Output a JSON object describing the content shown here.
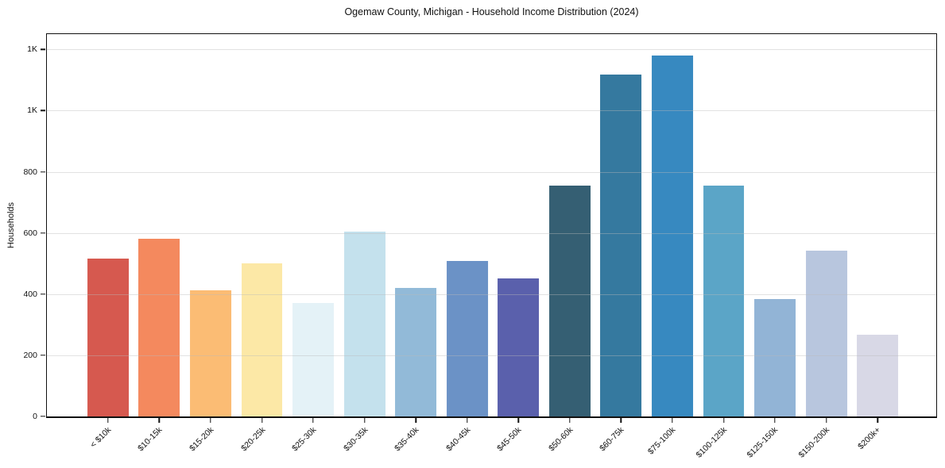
{
  "chart_data": {
    "type": "bar",
    "title": "Ogemaw County, Michigan - Household Income Distribution (2024)",
    "xlabel": "",
    "ylabel": "Households",
    "ylim": [
      0,
      1250
    ],
    "grid": true,
    "legend": false,
    "categories": [
      "< $10k",
      "$10-15k",
      "$15-20k",
      "$20-25k",
      "$25-30k",
      "$30-35k",
      "$35-40k",
      "$40-45k",
      "$45-50k",
      "$50-60k",
      "$60-75k",
      "$75-100k",
      "$100-125k",
      "$125-150k",
      "$150-200k",
      "$200k+"
    ],
    "values": [
      515,
      580,
      413,
      500,
      372,
      605,
      421,
      508,
      450,
      756,
      1118,
      1181,
      754,
      384,
      541,
      268
    ],
    "bar_colors": [
      "#d6594f",
      "#f4895e",
      "#fbbc74",
      "#fce8a6",
      "#e4f2f7",
      "#c4e1ed",
      "#92bad8",
      "#6b92c6",
      "#5a60ac",
      "#355f73",
      "#35799f",
      "#3789c0",
      "#5ba5c7",
      "#92b4d6",
      "#b8c6de",
      "#d8d8e6"
    ],
    "yticks": [
      {
        "value": 0,
        "label": "0"
      },
      {
        "value": 200,
        "label": "200"
      },
      {
        "value": 400,
        "label": "400"
      },
      {
        "value": 600,
        "label": "600"
      },
      {
        "value": 800,
        "label": "800"
      },
      {
        "value": 1000,
        "label": "1K"
      },
      {
        "value": 1200,
        "label": "1K"
      }
    ]
  }
}
